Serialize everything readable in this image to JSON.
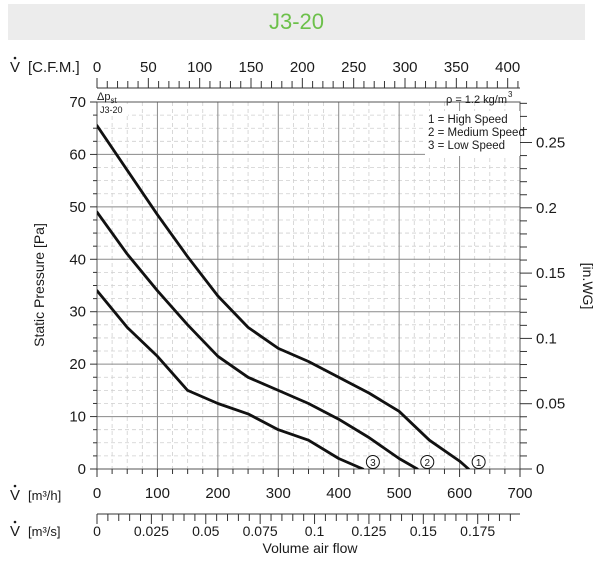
{
  "title": "J3-20",
  "chart_data": {
    "type": "line",
    "title": "J3-20",
    "xlabel": "Volume air flow",
    "ylabel": "Static Pressure [Pa]",
    "y2label": "[in.WG]",
    "dp_label": "Δp",
    "dp_sub": "st",
    "model_tag": "J3-20",
    "density_label": "ρ = 1.2 kg/m",
    "density_sup": "3",
    "x_unit": "m³/h",
    "xlim": [
      0,
      700
    ],
    "ylim": [
      0,
      70
    ],
    "grid": true,
    "legend_position": "top-right",
    "legend": [
      "1 = High Speed",
      "2 = Medium Speed",
      "3 = Low Speed"
    ],
    "axes": {
      "cfm": {
        "label": "[C.F.M.]",
        "ticks": [
          "0",
          "50",
          "100",
          "150",
          "200",
          "250",
          "300",
          "350",
          "400"
        ],
        "values": [
          0,
          50,
          100,
          150,
          200,
          250,
          300,
          350,
          400
        ]
      },
      "m3h": {
        "label": "[m³/h]",
        "ticks": [
          "0",
          "100",
          "200",
          "300",
          "400",
          "500",
          "600",
          "700"
        ],
        "values": [
          0,
          100,
          200,
          300,
          400,
          500,
          600,
          700
        ]
      },
      "m3s": {
        "label": "[m³/s]",
        "ticks": [
          "0",
          "0.025",
          "0.05",
          "0.075",
          "0.1",
          "0.125",
          "0.15",
          "0.175"
        ],
        "values": [
          0,
          0.025,
          0.05,
          0.075,
          0.1,
          0.125,
          0.15,
          0.175
        ]
      },
      "pa": {
        "ticks": [
          "0",
          "10",
          "20",
          "30",
          "40",
          "50",
          "60",
          "70"
        ],
        "values": [
          0,
          10,
          20,
          30,
          40,
          50,
          60,
          70
        ]
      },
      "inwg": {
        "ticks": [
          "0",
          "0.05",
          "0.1",
          "0.15",
          "0.2",
          "0.25"
        ],
        "values": [
          0,
          0.05,
          0.1,
          0.15,
          0.2,
          0.25
        ]
      }
    },
    "series": [
      {
        "name": "1",
        "label": "1 = High Speed",
        "x": [
          0,
          50,
          100,
          150,
          200,
          250,
          300,
          350,
          400,
          450,
          500,
          550,
          600,
          615
        ],
        "y": [
          65.5,
          57,
          48.5,
          40.5,
          33,
          27,
          23,
          20.5,
          17.5,
          14.5,
          11,
          5.5,
          1.5,
          0
        ]
      },
      {
        "name": "2",
        "label": "2 = Medium Speed",
        "x": [
          0,
          50,
          100,
          150,
          200,
          250,
          300,
          350,
          400,
          450,
          500,
          530
        ],
        "y": [
          49,
          41,
          34,
          27.5,
          21.5,
          17.5,
          15,
          12.5,
          9.5,
          6,
          2,
          0
        ]
      },
      {
        "name": "3",
        "label": "3 = Low Speed",
        "x": [
          0,
          50,
          100,
          150,
          200,
          250,
          300,
          350,
          400,
          440
        ],
        "y": [
          34,
          27,
          21.5,
          15,
          12.5,
          10.5,
          7.5,
          5.5,
          2,
          0
        ]
      }
    ]
  }
}
